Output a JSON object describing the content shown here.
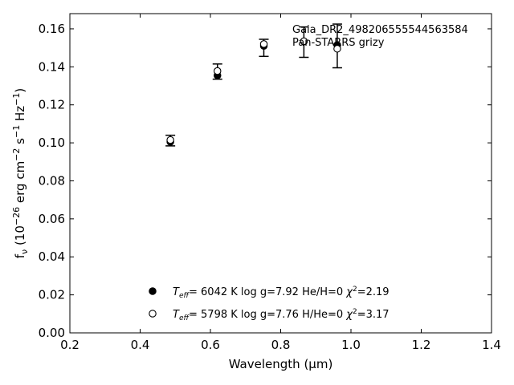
{
  "chart_data": {
    "type": "scatter",
    "xlabel": "Wavelength (μm)",
    "ylabel": "f_ν (10^−26 erg cm^−2 s^−1 Hz^−1)",
    "xlim": [
      0.2,
      1.4
    ],
    "ylim": [
      0.0,
      0.168
    ],
    "x_ticks": [
      "0.2",
      "0.4",
      "0.6",
      "0.8",
      "1.0",
      "1.2",
      "1.4"
    ],
    "y_ticks": [
      "0.00",
      "0.02",
      "0.04",
      "0.06",
      "0.08",
      "0.10",
      "0.12",
      "0.14",
      "0.16"
    ],
    "annotation_lines": [
      "Gaia_DR2_4982065555445 63584",
      "Pan-STARRS grizy"
    ],
    "observed": {
      "x": [
        0.486,
        0.62,
        0.752,
        0.866,
        0.961
      ],
      "y": [
        0.1012,
        0.1375,
        0.15,
        0.153,
        0.151
      ],
      "yerr": [
        0.0028,
        0.004,
        0.0045,
        0.008,
        0.0115
      ]
    },
    "series": [
      {
        "marker": "filled-circle",
        "x": [
          0.486,
          0.62,
          0.752,
          0.866,
          0.961
        ],
        "y": [
          0.1005,
          0.1355,
          0.151,
          0.1533,
          0.1515
        ]
      },
      {
        "marker": "open-circle",
        "x": [
          0.486,
          0.62,
          0.752,
          0.866,
          0.961
        ],
        "y": [
          0.1015,
          0.1378,
          0.152,
          0.1535,
          0.1495
        ]
      }
    ],
    "legend": {
      "placement": "lower-center",
      "entries": [
        {
          "marker": "filled-circle",
          "teff_label": "T",
          "teff_sub": "eff",
          "rest": "=  6042 K  log g=7.92  He/H=0  ",
          "chi_label": "χ",
          "chi_sup": "2",
          "chi_val": "=2.19"
        },
        {
          "marker": "open-circle",
          "teff_label": "T",
          "teff_sub": "eff",
          "rest": "=  5798 K  log g=7.76  H/He=0  ",
          "chi_label": "χ",
          "chi_sup": "2",
          "chi_val": "=3.17"
        }
      ]
    }
  }
}
